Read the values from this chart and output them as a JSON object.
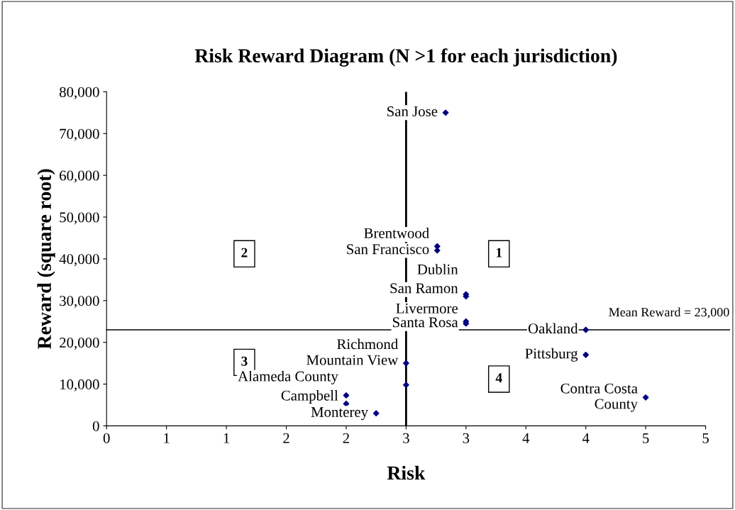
{
  "chart_data": {
    "type": "scatter",
    "title": "Risk Reward Diagram (N >1 for each jurisdiction)",
    "xlabel": "Risk",
    "ylabel": "Reward (square root)",
    "xlim": [
      0,
      5
    ],
    "ylim": [
      0,
      80000
    ],
    "xticks": [
      {
        "value": 0,
        "label": "0"
      },
      {
        "value": 0.5,
        "label": "1"
      },
      {
        "value": 1,
        "label": "1"
      },
      {
        "value": 1.5,
        "label": "2"
      },
      {
        "value": 2,
        "label": "2"
      },
      {
        "value": 2.5,
        "label": "3"
      },
      {
        "value": 3,
        "label": "3"
      },
      {
        "value": 3.5,
        "label": "4"
      },
      {
        "value": 4,
        "label": "4"
      },
      {
        "value": 4.5,
        "label": "5"
      },
      {
        "value": 5,
        "label": "5"
      }
    ],
    "yticks": [
      {
        "value": 0,
        "label": "0"
      },
      {
        "value": 10000,
        "label": "10,000"
      },
      {
        "value": 20000,
        "label": "20,000"
      },
      {
        "value": 30000,
        "label": "30,000"
      },
      {
        "value": 40000,
        "label": "40,000"
      },
      {
        "value": 50000,
        "label": "50,000"
      },
      {
        "value": 60000,
        "label": "60,000"
      },
      {
        "value": 70000,
        "label": "70,000"
      },
      {
        "value": 80000,
        "label": "80,000"
      }
    ],
    "grid": false,
    "legend": false,
    "marker": "diamond",
    "series": [
      {
        "color": "#000080",
        "x": [
          2.83,
          2.76,
          2.76,
          3.0,
          3.0,
          3.0,
          3.0,
          4.0,
          4.0,
          4.5,
          2.5,
          2.5,
          2.0,
          2.0,
          2.25
        ],
        "values": [
          75000,
          43000,
          42000,
          31500,
          31000,
          25000,
          24500,
          23000,
          17000,
          6800,
          15000,
          9800,
          7300,
          5300,
          3000
        ],
        "value_labels": [
          "San Jose",
          "Brentwood",
          "San Francisco",
          "Dublin",
          "San Ramon",
          "Livermore",
          "Santa Rosa",
          "Oakland",
          "Pittsburg",
          "Contra Costa\nCounty",
          "Richmond",
          "Mountain View",
          "Alameda County",
          "Campbell",
          "Monterey"
        ]
      }
    ],
    "ref_lines": [
      {
        "axis": "x",
        "value": 2.5,
        "color": "#000000"
      },
      {
        "axis": "y",
        "value": 23000,
        "label": "Mean Reward = 23,000",
        "color": "#000000"
      }
    ],
    "annotations": [
      "2",
      "1",
      "3",
      "4"
    ]
  }
}
